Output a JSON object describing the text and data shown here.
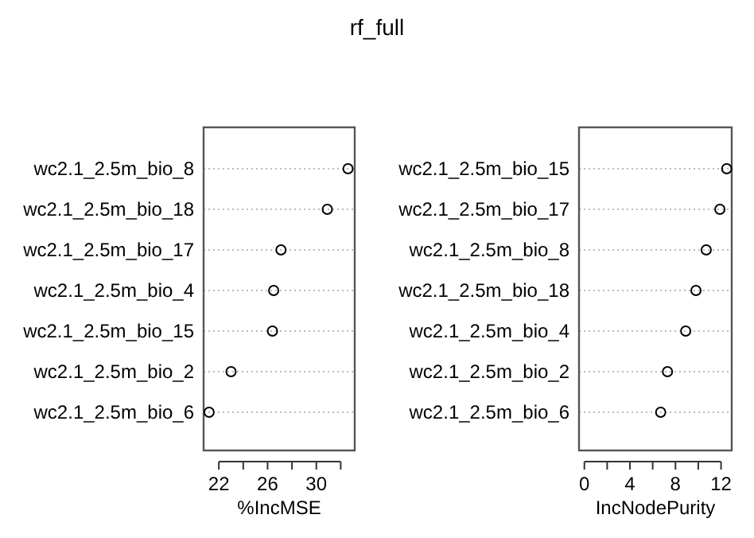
{
  "chart_data": [
    {
      "type": "scatter",
      "title": "rf_full",
      "xlabel": "%IncMSE",
      "orientation": "horizontal",
      "categories": [
        "wc2.1_2.5m_bio_8",
        "wc2.1_2.5m_bio_18",
        "wc2.1_2.5m_bio_17",
        "wc2.1_2.5m_bio_4",
        "wc2.1_2.5m_bio_15",
        "wc2.1_2.5m_bio_2",
        "wc2.1_2.5m_bio_6"
      ],
      "values": [
        32.6,
        30.9,
        27.1,
        26.5,
        26.4,
        23.0,
        21.2
      ],
      "color": "#000000",
      "marker": "circle",
      "grid": "y",
      "xlim": [
        20.75,
        33.15
      ],
      "xticks": [
        22,
        {
          "value": 24,
          "label": null
        },
        26,
        {
          "value": 28,
          "label": null
        },
        30,
        {
          "value": 32,
          "label": null
        }
      ]
    },
    {
      "type": "scatter",
      "xlabel": "IncNodePurity",
      "orientation": "horizontal",
      "categories": [
        "wc2.1_2.5m_bio_15",
        "wc2.1_2.5m_bio_17",
        "wc2.1_2.5m_bio_8",
        "wc2.1_2.5m_bio_18",
        "wc2.1_2.5m_bio_4",
        "wc2.1_2.5m_bio_2",
        "wc2.1_2.5m_bio_6"
      ],
      "values": [
        12.5,
        11.9,
        10.7,
        9.8,
        8.9,
        7.3,
        6.7
      ],
      "color": "#000000",
      "marker": "circle",
      "grid": "y",
      "xlim": [
        -0.47,
        12.94
      ],
      "xticks": [
        0,
        {
          "value": 2,
          "label": null
        },
        4,
        {
          "value": 6,
          "label": null
        },
        8,
        {
          "value": 10,
          "label": null
        },
        12
      ]
    }
  ]
}
